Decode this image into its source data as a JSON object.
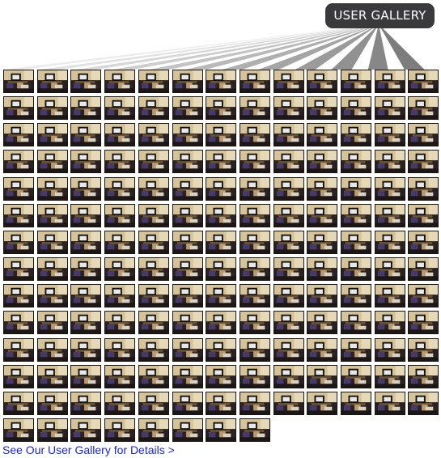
{
  "header": {
    "badge_label": "USER GALLERY"
  },
  "gallery": {
    "thumbnail_count": 177,
    "columns": 13,
    "thumbnail_icon": "photo-thumbnail",
    "colors": {
      "wall": "#d2c096",
      "floor": "#2a2222",
      "fan_light": "#f2f2f2",
      "fan_dark": "#8a8a8a"
    }
  },
  "footer": {
    "link_text": "See Our User Gallery for Details >"
  },
  "colors": {
    "badge_bg": "#3a3a3d",
    "link": "#1a27d6"
  }
}
